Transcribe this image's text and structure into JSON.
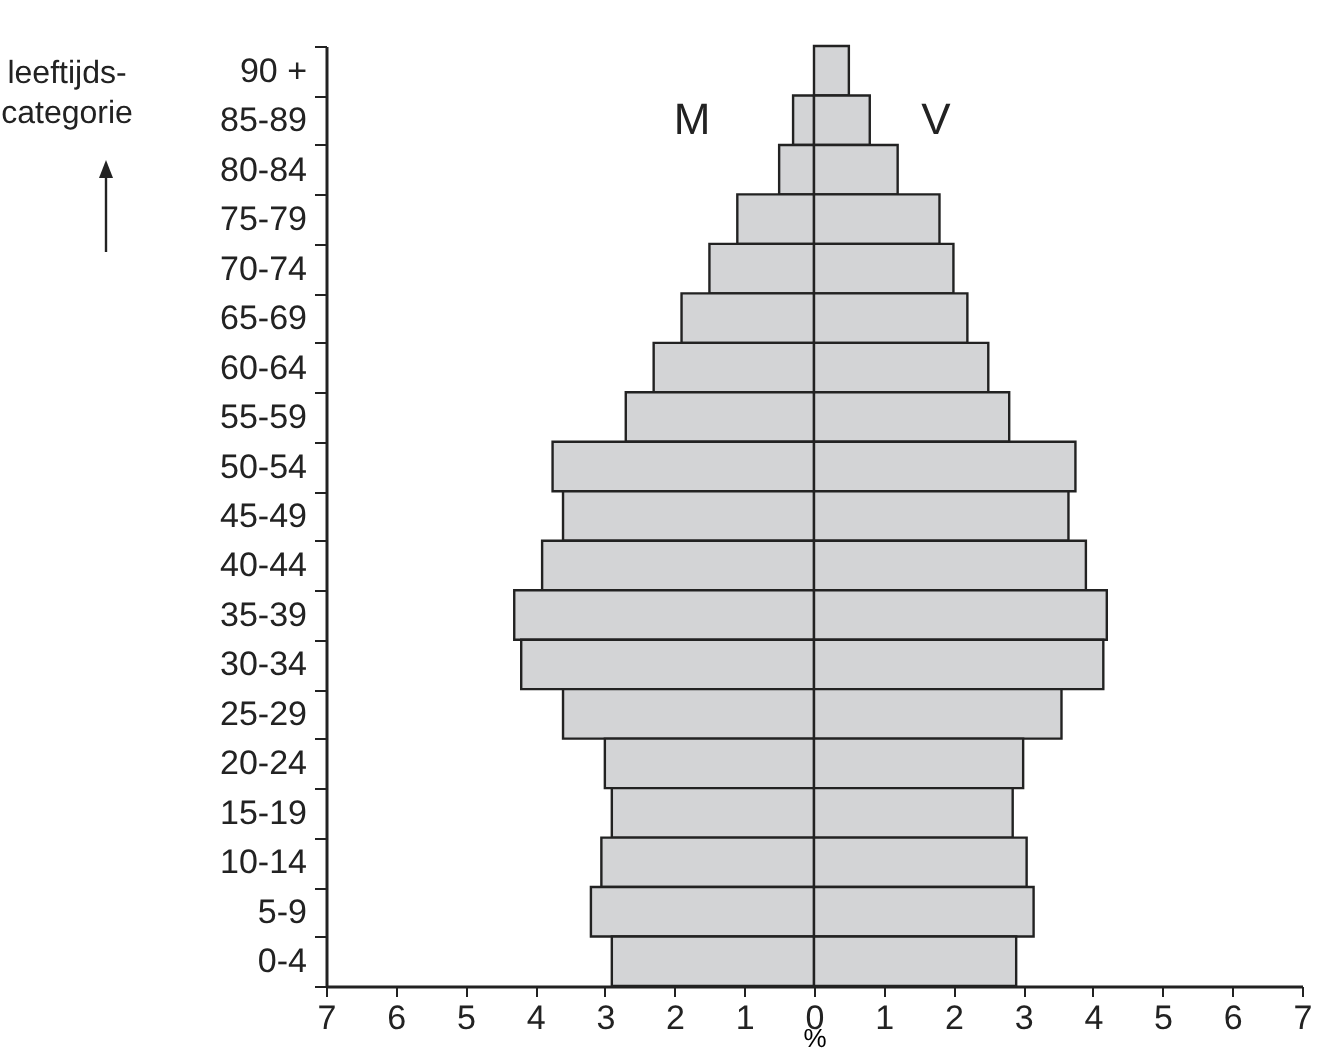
{
  "chart_data": {
    "type": "bar",
    "orientation": "horizontal",
    "ylabel": "leeftijds-categorie",
    "xlabel": "%",
    "categories": [
      "90 +",
      "85-89",
      "80-84",
      "75-79",
      "70-74",
      "65-69",
      "60-64",
      "55-59",
      "50-54",
      "45-49",
      "40-44",
      "35-39",
      "30-34",
      "25-29",
      "20-24",
      "15-19",
      "10-14",
      "5-9",
      "0-4"
    ],
    "series": [
      {
        "name": "M",
        "color": "#d3d4d6",
        "values": [
          null,
          -0.3,
          -0.5,
          -1.1,
          -1.5,
          -1.9,
          -2.3,
          -2.7,
          -3.75,
          -3.6,
          -3.9,
          -4.3,
          -4.2,
          -3.6,
          -3.0,
          -2.9,
          -3.05,
          -3.2,
          -2.9
        ]
      },
      {
        "name": "V",
        "color": "#d3d4d6",
        "values": [
          0.5,
          0.8,
          1.2,
          1.8,
          2.0,
          2.2,
          2.5,
          2.8,
          3.75,
          3.65,
          3.9,
          4.2,
          4.15,
          3.55,
          3.0,
          2.85,
          3.05,
          3.15,
          2.9
        ]
      }
    ],
    "xlim": [
      -7,
      7
    ],
    "xticks": [
      {
        "value": -7,
        "label": "7"
      },
      {
        "value": -6,
        "label": "6"
      },
      {
        "value": -5,
        "label": "5"
      },
      {
        "value": -4,
        "label": "4"
      },
      {
        "value": -3,
        "label": "3"
      },
      {
        "value": -2,
        "label": "2"
      },
      {
        "value": -1,
        "label": "1"
      },
      0,
      1,
      2,
      3,
      4,
      5,
      6,
      7
    ],
    "stacked": true,
    "grid": false,
    "legend": false
  }
}
